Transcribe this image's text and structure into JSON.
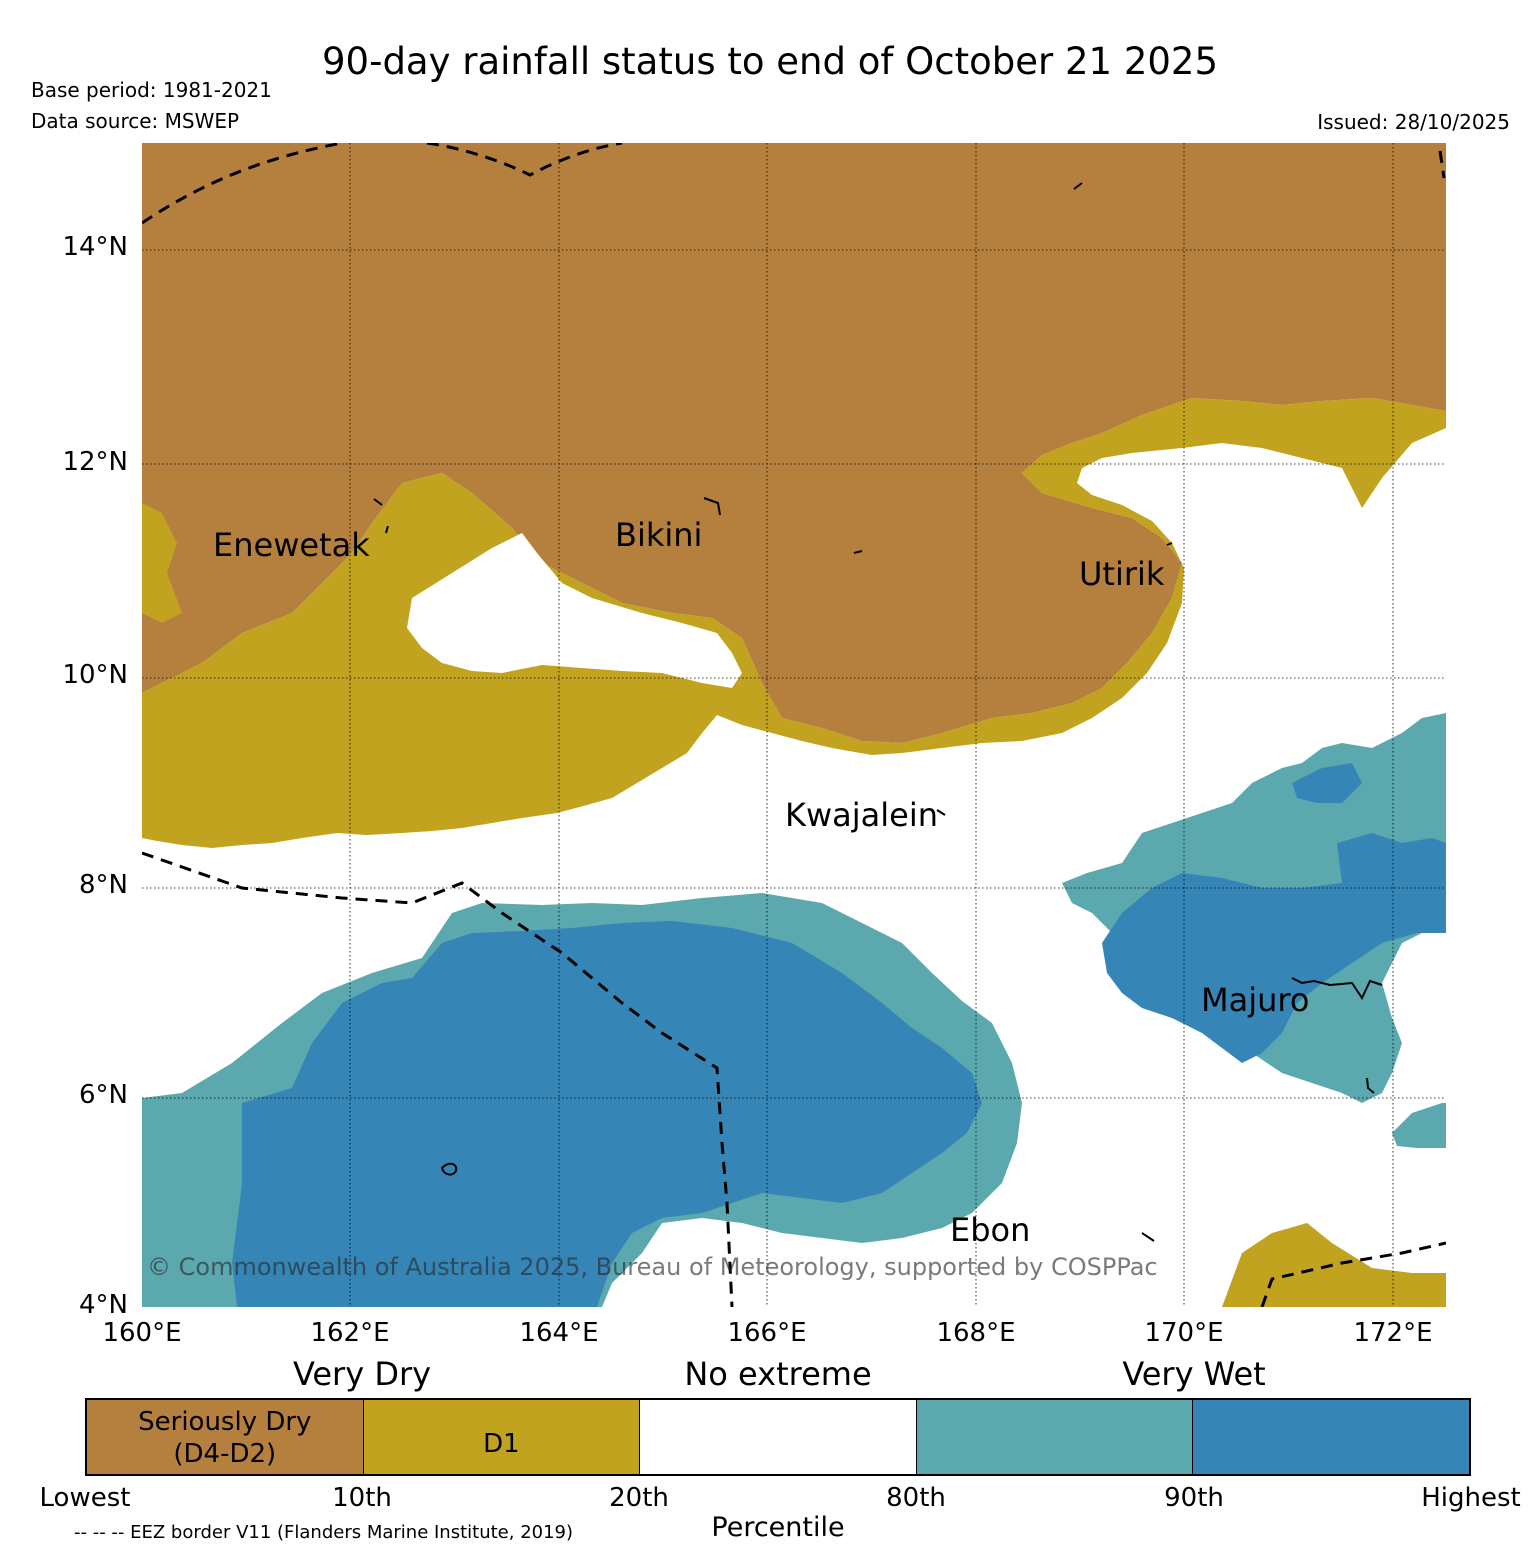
{
  "header": {
    "title": "90-day rainfall status to end of October 21 2025",
    "base_period": "Base period: 1981-2021",
    "data_source": "Data source: MSWEP",
    "issued": "Issued: 28/10/2025"
  },
  "map": {
    "lat_labels": [
      "14°N",
      "12°N",
      "10°N",
      "8°N",
      "6°N",
      "4°N"
    ],
    "lon_labels": [
      "160°E",
      "162°E",
      "164°E",
      "166°E",
      "168°E",
      "170°E",
      "172°E"
    ],
    "places": [
      "Enewetak",
      "Bikini",
      "Utirik",
      "Kwajalein",
      "Majuro",
      "Ebon"
    ],
    "copyright": "© Commonwealth of Australia 2025, Bureau of Meteorology, supported by COSPPac",
    "colors": {
      "seriously_dry": "#b57f3d",
      "d1": "#c2a31f",
      "no_extreme": "#ffffff",
      "very_wet_80_90": "#5ba8ae",
      "very_wet_90_plus": "#3585b6"
    }
  },
  "legend": {
    "categories": [
      "Very Dry",
      "No extreme",
      "Very Wet"
    ],
    "segments": [
      {
        "line1": "Seriously Dry",
        "line2": "(D4-D2)",
        "color": "#b57f3d"
      },
      {
        "line1": "",
        "line2": "D1",
        "color": "#c2a31f"
      },
      {
        "line1": "",
        "line2": "",
        "color": "#ffffff"
      },
      {
        "line1": "",
        "line2": "",
        "color": "#5ba8ae"
      },
      {
        "line1": "",
        "line2": "",
        "color": "#3585b6"
      }
    ],
    "ticks": [
      "Lowest",
      "10th",
      "20th",
      "80th",
      "90th",
      "Highest"
    ],
    "eez_note": "-- -- -- EEZ border V11 (Flanders Marine Institute, 2019)",
    "axis_title": "Percentile"
  }
}
